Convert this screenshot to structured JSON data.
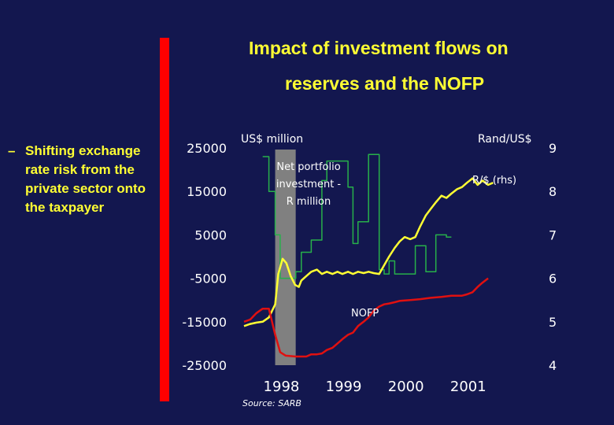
{
  "slide": {
    "title_line1": "Impact of investment flows on",
    "title_line2": "reserves and the NOFP",
    "bullet_dash": "–",
    "bullet_text": "Shifting exchange rate risk from the private sector onto the taxpayer",
    "source": "Source: SARB"
  },
  "colors": {
    "background": "#13174f",
    "accent_bar": "#ff0000",
    "title": "#ffff33",
    "shade": "#808080",
    "portfolio": "#27b04a",
    "rand": "#ffff33",
    "nofp": "#e01010"
  },
  "chart_data": {
    "type": "line",
    "left_axis_label": "US$ million",
    "right_axis_label": "Rand/US$",
    "ylim": [
      -25000,
      25000
    ],
    "y_ticks": [
      25000,
      15000,
      5000,
      -5000,
      -15000,
      -25000
    ],
    "y2lim": [
      4,
      9
    ],
    "y2_ticks": [
      9,
      8,
      7,
      6,
      5,
      4
    ],
    "x_tick_labels": [
      "1998",
      "1999",
      "2000",
      "2001"
    ],
    "xlim": [
      1997.5,
      2002.0
    ],
    "shaded_region": [
      1998.0,
      1998.33
    ],
    "annotations": {
      "portfolio": "Net portfolio investment - R million",
      "rand": "R/$ (rhs)",
      "nofp": "NOFP"
    },
    "series": [
      {
        "name": "Net portfolio investment - R million",
        "axis": "left",
        "points": [
          [
            1997.8,
            23000
          ],
          [
            1997.9,
            23000
          ],
          [
            1997.9,
            15000
          ],
          [
            1998.0,
            15000
          ],
          [
            1998.0,
            5000
          ],
          [
            1998.08,
            5000
          ],
          [
            1998.08,
            -5000
          ],
          [
            1998.33,
            -5000
          ],
          [
            1998.33,
            -3500
          ],
          [
            1998.42,
            -3500
          ],
          [
            1998.42,
            1000
          ],
          [
            1998.58,
            1000
          ],
          [
            1998.58,
            3800
          ],
          [
            1998.75,
            3800
          ],
          [
            1998.75,
            17500
          ],
          [
            1998.83,
            17500
          ],
          [
            1998.83,
            22000
          ],
          [
            1999.17,
            22000
          ],
          [
            1999.17,
            16000
          ],
          [
            1999.25,
            16000
          ],
          [
            1999.25,
            3000
          ],
          [
            1999.33,
            3000
          ],
          [
            1999.33,
            8000
          ],
          [
            1999.5,
            8000
          ],
          [
            1999.5,
            23500
          ],
          [
            1999.67,
            23500
          ],
          [
            1999.67,
            -3000
          ],
          [
            1999.75,
            -3000
          ],
          [
            1999.75,
            -4000
          ],
          [
            1999.83,
            -4000
          ],
          [
            1999.83,
            -1000
          ],
          [
            1999.92,
            -1000
          ],
          [
            1999.92,
            -4000
          ],
          [
            2000.25,
            -4000
          ],
          [
            2000.25,
            2500
          ],
          [
            2000.42,
            2500
          ],
          [
            2000.42,
            -3500
          ],
          [
            2000.58,
            -3500
          ],
          [
            2000.58,
            5000
          ],
          [
            2000.75,
            5000
          ],
          [
            2000.75,
            4500
          ],
          [
            2000.83,
            4500
          ]
        ]
      },
      {
        "name": "R/$ (rhs)",
        "axis": "right",
        "points": [
          [
            1997.5,
            4.9
          ],
          [
            1997.6,
            4.95
          ],
          [
            1997.7,
            4.98
          ],
          [
            1997.8,
            5.0
          ],
          [
            1997.9,
            5.1
          ],
          [
            1998.0,
            5.4
          ],
          [
            1998.05,
            6.1
          ],
          [
            1998.12,
            6.45
          ],
          [
            1998.18,
            6.35
          ],
          [
            1998.25,
            6.05
          ],
          [
            1998.32,
            5.85
          ],
          [
            1998.38,
            5.8
          ],
          [
            1998.42,
            5.95
          ],
          [
            1998.5,
            6.05
          ],
          [
            1998.58,
            6.15
          ],
          [
            1998.67,
            6.2
          ],
          [
            1998.75,
            6.1
          ],
          [
            1998.83,
            6.15
          ],
          [
            1998.92,
            6.1
          ],
          [
            1999.0,
            6.15
          ],
          [
            1999.08,
            6.1
          ],
          [
            1999.17,
            6.15
          ],
          [
            1999.25,
            6.1
          ],
          [
            1999.33,
            6.15
          ],
          [
            1999.42,
            6.12
          ],
          [
            1999.5,
            6.15
          ],
          [
            1999.58,
            6.12
          ],
          [
            1999.67,
            6.1
          ],
          [
            1999.75,
            6.3
          ],
          [
            1999.83,
            6.5
          ],
          [
            1999.92,
            6.7
          ],
          [
            2000.0,
            6.85
          ],
          [
            2000.08,
            6.95
          ],
          [
            2000.17,
            6.9
          ],
          [
            2000.25,
            6.95
          ],
          [
            2000.33,
            7.2
          ],
          [
            2000.42,
            7.45
          ],
          [
            2000.5,
            7.6
          ],
          [
            2000.58,
            7.75
          ],
          [
            2000.67,
            7.9
          ],
          [
            2000.75,
            7.85
          ],
          [
            2000.83,
            7.95
          ],
          [
            2000.92,
            8.05
          ],
          [
            2001.0,
            8.1
          ],
          [
            2001.08,
            8.2
          ],
          [
            2001.17,
            8.3
          ],
          [
            2001.25,
            8.15
          ],
          [
            2001.33,
            8.25
          ],
          [
            2001.42,
            8.15
          ],
          [
            2001.5,
            8.2
          ]
        ]
      },
      {
        "name": "NOFP",
        "axis": "left",
        "points": [
          [
            1997.5,
            -15000
          ],
          [
            1997.6,
            -14500
          ],
          [
            1997.7,
            -13000
          ],
          [
            1997.8,
            -12000
          ],
          [
            1997.9,
            -12000
          ],
          [
            1998.0,
            -18000
          ],
          [
            1998.08,
            -22000
          ],
          [
            1998.17,
            -22800
          ],
          [
            1998.33,
            -23000
          ],
          [
            1998.5,
            -23000
          ],
          [
            1998.58,
            -22500
          ],
          [
            1998.67,
            -22500
          ],
          [
            1998.75,
            -22300
          ],
          [
            1998.83,
            -21500
          ],
          [
            1998.92,
            -21000
          ],
          [
            1999.0,
            -20000
          ],
          [
            1999.08,
            -19000
          ],
          [
            1999.17,
            -18000
          ],
          [
            1999.25,
            -17500
          ],
          [
            1999.33,
            -16000
          ],
          [
            1999.42,
            -15000
          ],
          [
            1999.5,
            -14000
          ],
          [
            1999.58,
            -12500
          ],
          [
            1999.67,
            -11500
          ],
          [
            1999.75,
            -11000
          ],
          [
            1999.83,
            -10800
          ],
          [
            1999.92,
            -10500
          ],
          [
            2000.0,
            -10200
          ],
          [
            2000.17,
            -10000
          ],
          [
            2000.33,
            -9800
          ],
          [
            2000.5,
            -9500
          ],
          [
            2000.67,
            -9300
          ],
          [
            2000.83,
            -9000
          ],
          [
            2001.0,
            -9000
          ],
          [
            2001.08,
            -8700
          ],
          [
            2001.17,
            -8200
          ],
          [
            2001.25,
            -7000
          ],
          [
            2001.33,
            -6000
          ],
          [
            2001.42,
            -5000
          ]
        ]
      }
    ]
  }
}
